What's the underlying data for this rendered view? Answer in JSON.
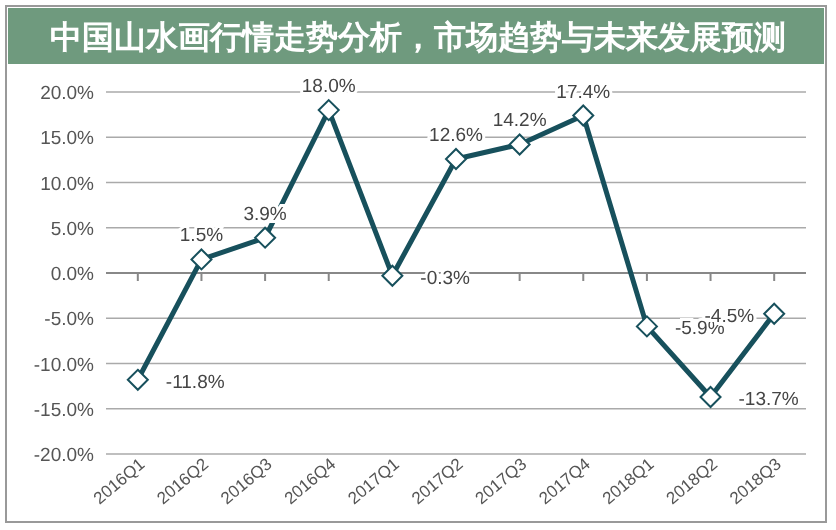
{
  "chart_data": {
    "type": "line",
    "title": "中国山水画行情走势分析，市场趋势与未来发展预测",
    "categories": [
      "2016Q1",
      "2016Q2",
      "2016Q3",
      "2016Q4",
      "2017Q1",
      "2017Q2",
      "2017Q3",
      "2017Q4",
      "2018Q1",
      "2018Q2",
      "2018Q3"
    ],
    "series": [
      {
        "color": "#17505c",
        "values": [
          -11.8,
          1.5,
          3.9,
          18.0,
          -0.3,
          12.6,
          14.2,
          17.4,
          -5.9,
          -13.7,
          -4.5
        ],
        "value_labels": [
          "-11.8%",
          "1.5%",
          "3.9%",
          "18.0%",
          "-0.3%",
          "12.6%",
          "14.2%",
          "17.4%",
          "-5.9%",
          "-13.7%",
          "-4.5%"
        ]
      }
    ],
    "ylim": [
      -20,
      20
    ],
    "yticks": [
      {
        "value": -20,
        "label": "-20.0%"
      },
      {
        "value": -15,
        "label": "-15.0%"
      },
      {
        "value": -10,
        "label": "-10.0%"
      },
      {
        "value": -5,
        "label": "-5.0%"
      },
      {
        "value": 0,
        "label": "0.0%"
      },
      {
        "value": 5,
        "label": "5.0%"
      },
      {
        "value": 10,
        "label": "10.0%"
      },
      {
        "value": 15,
        "label": "15.0%"
      },
      {
        "value": 20,
        "label": "20.0%"
      }
    ],
    "grid": "y",
    "marker": "diamond",
    "line_style": "solid"
  }
}
